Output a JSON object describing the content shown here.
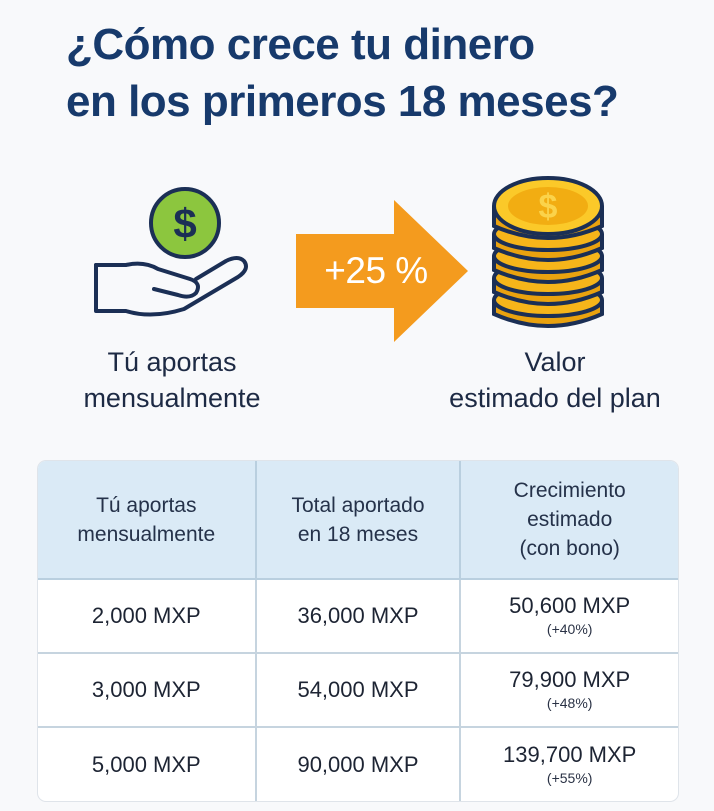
{
  "title": {
    "line1": "¿Cómo crece tu dinero",
    "line2": "en los primeros 18 meses?"
  },
  "icons": {
    "hand": "hand-with-dollar-coin-icon",
    "arrow": "orange-arrow-icon",
    "coins": "gold-coin-stack-icon"
  },
  "colors": {
    "title": "#173a6c",
    "coin_green": "#8cc63e",
    "arrow_orange": "#f49b1e",
    "gold": "#f6b51a",
    "header_bg": "#daeaf6"
  },
  "flow": {
    "left_label_line1": "Tú aportas",
    "left_label_line2": "mensualmente",
    "arrow_text": "+25 %",
    "right_label_line1": "Valor",
    "right_label_line2": "estimado del plan"
  },
  "table": {
    "headers": [
      [
        "Tú aportas",
        "mensualmente"
      ],
      [
        "Total aportado",
        "en 18 meses"
      ],
      [
        "Crecimiento",
        "estimado",
        "(con bono)"
      ]
    ],
    "rows": [
      {
        "monthly": "2,000 MXP",
        "total": "36,000 MXP",
        "growth": "50,600 MXP",
        "growth_pct": "(+40%)"
      },
      {
        "monthly": "3,000 MXP",
        "total": "54,000 MXP",
        "growth": "79,900 MXP",
        "growth_pct": "(+48%)"
      },
      {
        "monthly": "5,000 MXP",
        "total": "90,000 MXP",
        "growth": "139,700 MXP",
        "growth_pct": "(+55%)"
      }
    ]
  }
}
